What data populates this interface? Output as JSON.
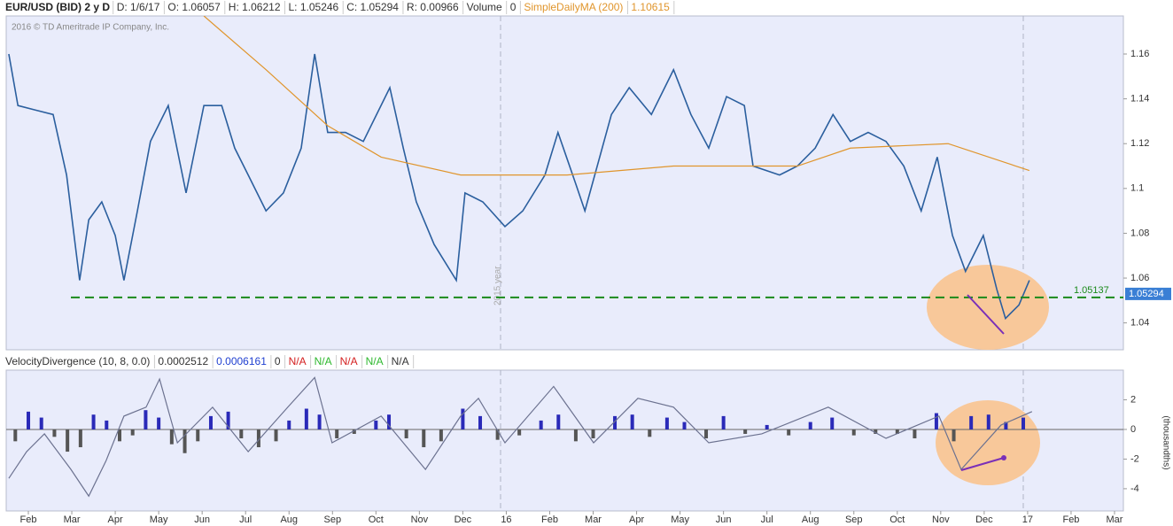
{
  "chart_data": [
    {
      "type": "line",
      "title": "EUR/USD (BID) 2 y D",
      "quote_fields": [
        "D: 1/6/17",
        "O: 1.06057",
        "H: 1.06212",
        "L: 1.05246",
        "C: 1.05294",
        "R: 0.00966",
        "Volume",
        "0"
      ],
      "study_label": "SimpleDailyMA (200)",
      "study_value": "1.10615",
      "copyright": "2016 © TD Ameritrade IP Company, Inc.",
      "annotation": "2015 year",
      "support_line": {
        "value": 1.05137,
        "label": "1.05137",
        "color": "#1a8a1a"
      },
      "last_price": {
        "value": 1.05294,
        "label": "1.05294",
        "color": "#3a7fd5"
      },
      "xlim": [
        0.49,
        26.204
      ],
      "xticks": [
        {
          "value": 1,
          "label": "Feb"
        },
        {
          "value": 2,
          "label": "Mar"
        },
        {
          "value": 3,
          "label": "Apr"
        },
        {
          "value": 4,
          "label": "May"
        },
        {
          "value": 5,
          "label": "Jun"
        },
        {
          "value": 6,
          "label": "Jul"
        },
        {
          "value": 7,
          "label": "Aug"
        },
        {
          "value": 8,
          "label": "Sep"
        },
        {
          "value": 9,
          "label": "Oct"
        },
        {
          "value": 10,
          "label": "Nov"
        },
        {
          "value": 11,
          "label": "Dec"
        },
        {
          "value": 12,
          "label": "16"
        },
        {
          "value": 13,
          "label": "Feb"
        },
        {
          "value": 14,
          "label": "Mar"
        },
        {
          "value": 15,
          "label": "Apr"
        },
        {
          "value": 16,
          "label": "May"
        },
        {
          "value": 17,
          "label": "Jun"
        },
        {
          "value": 18,
          "label": "Jul"
        },
        {
          "value": 19,
          "label": "Aug"
        },
        {
          "value": 20,
          "label": "Sep"
        },
        {
          "value": 21,
          "label": "Oct"
        },
        {
          "value": 22,
          "label": "Nov"
        },
        {
          "value": 23,
          "label": "Dec"
        },
        {
          "value": 24,
          "label": "17"
        },
        {
          "value": 25,
          "label": "Feb"
        },
        {
          "value": 26,
          "label": "Mar"
        }
      ],
      "ylim": [
        1.028,
        1.177
      ],
      "yticks": [
        1.04,
        1.06,
        1.08,
        1.1,
        1.12,
        1.14,
        1.16
      ],
      "series": [
        {
          "color": "#2b5f9e",
          "x": [
            0.55,
            0.76,
            1.16,
            1.57,
            1.88,
            2.18,
            2.39,
            2.69,
            3.0,
            3.2,
            3.51,
            3.81,
            4.22,
            4.63,
            5.04,
            5.45,
            5.75,
            6.06,
            6.47,
            6.87,
            7.28,
            7.59,
            7.89,
            8.3,
            8.71,
            9.32,
            9.63,
            9.93,
            10.34,
            10.85,
            11.05,
            11.46,
            11.97,
            12.38,
            12.89,
            13.19,
            13.6,
            13.81,
            14.42,
            14.83,
            15.34,
            15.85,
            16.25,
            16.66,
            17.07,
            17.48,
            17.68,
            18.29,
            18.7,
            19.11,
            19.52,
            19.92,
            20.33,
            20.74,
            21.15,
            21.55,
            21.92,
            22.27,
            22.57,
            22.98,
            23.29,
            23.49,
            23.8,
            24.04
          ],
          "values": [
            1.16,
            1.137,
            1.135,
            1.133,
            1.106,
            1.059,
            1.086,
            1.094,
            1.079,
            1.059,
            1.09,
            1.121,
            1.137,
            1.098,
            1.137,
            1.137,
            1.118,
            1.106,
            1.09,
            1.098,
            1.118,
            1.16,
            1.125,
            1.125,
            1.121,
            1.145,
            1.118,
            1.094,
            1.075,
            1.059,
            1.098,
            1.094,
            1.083,
            1.09,
            1.106,
            1.125,
            1.102,
            1.09,
            1.133,
            1.145,
            1.133,
            1.153,
            1.133,
            1.118,
            1.141,
            1.137,
            1.11,
            1.106,
            1.11,
            1.118,
            1.133,
            1.121,
            1.125,
            1.121,
            1.11,
            1.09,
            1.114,
            1.079,
            1.063,
            1.079,
            1.055,
            1.042,
            1.048,
            1.059
          ]
        },
        {
          "name": "SimpleDailyMA (200)",
          "color": "#e0952c",
          "x": [
            5.04,
            6.47,
            7.89,
            9.12,
            10.95,
            13.4,
            15.85,
            18.7,
            19.92,
            22.17,
            24.04
          ],
          "values": [
            1.177,
            1.153,
            1.128,
            1.114,
            1.106,
            1.106,
            1.11,
            1.11,
            1.118,
            1.12,
            1.108
          ]
        }
      ]
    },
    {
      "type": "bar",
      "title": "VelocityDivergence (10, 8, 0.0)",
      "fields": [
        "0.0002512",
        "0.0006161",
        "0",
        "N/A",
        "N/A",
        "N/A",
        "N/A",
        "N/A"
      ],
      "field_colors": [
        "#333333",
        "#1f3fd0",
        "#333333",
        "#d42020",
        "#2eb82e",
        "#d42020",
        "#2eb82e",
        "#333333"
      ],
      "y_label": "(thousandths)",
      "xlim": [
        0.49,
        26.204
      ],
      "ylim": [
        -5.5,
        4.0
      ],
      "yticks": [
        -4,
        -2,
        0,
        2
      ],
      "series": [
        {
          "type": "bar",
          "color": "#2a2ab8",
          "negative_color": "#555555",
          "x": [
            0.7,
            1.0,
            1.3,
            1.6,
            1.9,
            2.2,
            2.5,
            2.8,
            3.1,
            3.4,
            3.7,
            4.0,
            4.3,
            4.6,
            4.9,
            5.2,
            5.6,
            5.9,
            6.3,
            6.7,
            7.0,
            7.4,
            7.7,
            8.1,
            8.5,
            9.0,
            9.3,
            9.7,
            10.1,
            10.5,
            11.0,
            11.4,
            11.8,
            12.3,
            12.8,
            13.2,
            13.6,
            14.0,
            14.5,
            14.9,
            15.3,
            15.7,
            16.1,
            16.6,
            17.0,
            17.5,
            18.0,
            18.5,
            19.0,
            19.5,
            20.0,
            20.5,
            21.0,
            21.4,
            21.9,
            22.3,
            22.7,
            23.1,
            23.5,
            23.9
          ],
          "values": [
            -0.8,
            1.2,
            0.8,
            -0.5,
            -1.5,
            -1.2,
            1.0,
            0.6,
            -0.8,
            -0.4,
            1.3,
            0.8,
            -1.0,
            -1.6,
            -0.8,
            0.9,
            1.2,
            -0.6,
            -1.2,
            -0.8,
            0.6,
            1.4,
            1.0,
            -0.6,
            -0.3,
            0.6,
            1.0,
            -0.6,
            -1.2,
            -0.8,
            1.4,
            0.9,
            -0.7,
            -0.4,
            0.6,
            1.0,
            -0.8,
            -0.6,
            0.9,
            1.0,
            -0.5,
            0.8,
            0.5,
            -0.6,
            0.9,
            -0.3,
            0.3,
            -0.4,
            0.5,
            0.8,
            -0.4,
            -0.3,
            -0.3,
            -0.6,
            1.1,
            -0.8,
            0.9,
            1.0,
            0.5,
            0.8
          ]
        },
        {
          "type": "line",
          "color": "#6c7290",
          "x": [
            0.55,
            0.96,
            1.37,
            1.98,
            2.39,
            2.79,
            3.2,
            3.71,
            4.02,
            4.43,
            5.24,
            6.06,
            6.97,
            7.59,
            7.99,
            9.12,
            10.14,
            10.95,
            11.36,
            11.97,
            13.09,
            14.01,
            15.03,
            15.85,
            16.66,
            17.88,
            19.41,
            20.74,
            21.96,
            22.47,
            23.39,
            24.1
          ],
          "values": [
            -3.3,
            -1.5,
            -0.3,
            -2.7,
            -4.5,
            -2.1,
            0.9,
            1.5,
            3.4,
            -0.9,
            1.5,
            -1.5,
            1.5,
            3.5,
            -0.9,
            0.9,
            -2.7,
            0.9,
            2.1,
            -0.9,
            2.9,
            -0.9,
            2.1,
            1.5,
            -0.9,
            -0.3,
            1.5,
            -0.6,
            0.9,
            -2.7,
            0.3,
            1.2
          ]
        }
      ]
    }
  ]
}
